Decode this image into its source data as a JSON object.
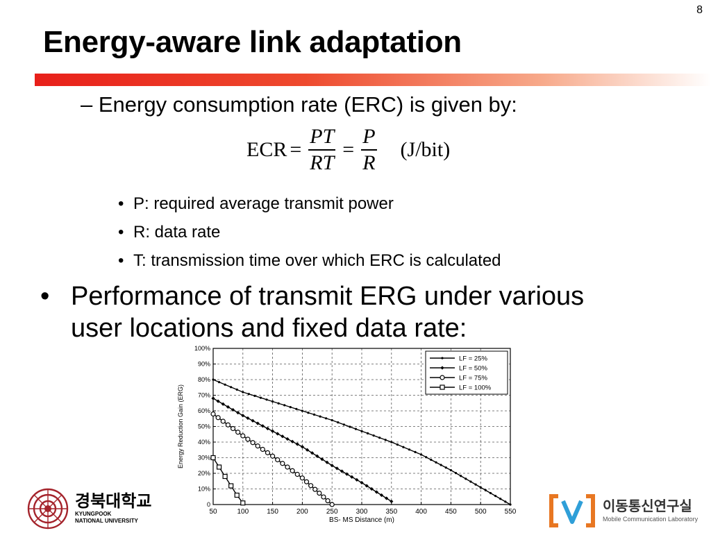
{
  "slide": {
    "page_number": "8",
    "title": "Energy-aware link adaptation",
    "dash_item": "Energy consumption rate (ERC) is given by:",
    "formula": {
      "lhs": "ECR",
      "eq": "=",
      "frac1_num": "PT",
      "frac1_den": "RT",
      "frac2_num": "P",
      "frac2_den": "R",
      "unit": "(J/bit)"
    },
    "sub_bullets": [
      "P: required average transmit power",
      "R: data rate",
      "T: transmission time over which ERC is calculated"
    ],
    "main_bullet": [
      "Performance of transmit ERG under various",
      "user locations and fixed data rate:"
    ],
    "bullet_dash": "–",
    "bullet_dot": "•",
    "footer": {
      "university_kr": "경북대학교",
      "university_en_line1": "KYUNGPOOK",
      "university_en_line2": "NATIONAL UNIVERSITY",
      "lab_kr": "이동통신연구실",
      "lab_en": "Mobile Communication Laboratory",
      "lab_logo_color": "#e87722",
      "lab_logo_v_color": "#2f9fd8",
      "university_logo_color": "#a4232b"
    },
    "accent_bar_colors": [
      "#e8201a",
      "#f7a98a"
    ]
  },
  "chart_data": {
    "type": "line",
    "xlabel": "BS- MS Distance (m)",
    "ylabel": "Energy Reduction Gain (ERG)",
    "xlim": [
      50,
      550
    ],
    "ylim": [
      0,
      100
    ],
    "xticks": [
      "50",
      "100",
      "150",
      "200",
      "250",
      "300",
      "350",
      "400",
      "450",
      "500",
      "550"
    ],
    "yticks": [
      "0",
      "10%",
      "20%",
      "30%",
      "40%",
      "50%",
      "60%",
      "70%",
      "80%",
      "90%",
      "100%"
    ],
    "grid": true,
    "legend_position": "top-right",
    "series": [
      {
        "name": "LF = 25%",
        "marker": "dot",
        "x": [
          50,
          100,
          150,
          200,
          250,
          300,
          350,
          400,
          450,
          500,
          550
        ],
        "y": [
          80,
          72,
          66,
          60,
          54,
          47,
          40,
          32,
          22,
          11,
          0
        ]
      },
      {
        "name": "LF = 50%",
        "marker": "diamond",
        "x": [
          50,
          100,
          150,
          200,
          250,
          300,
          350
        ],
        "y": [
          68,
          57,
          47,
          37,
          25,
          14,
          2
        ]
      },
      {
        "name": "LF = 75%",
        "marker": "circle",
        "x": [
          50,
          100,
          150,
          200,
          250
        ],
        "y": [
          58,
          44,
          31,
          17,
          0
        ]
      },
      {
        "name": "LF = 100%",
        "marker": "square",
        "x": [
          50,
          60,
          70,
          80,
          90,
          100
        ],
        "y": [
          30,
          24,
          18,
          12,
          6,
          1
        ]
      }
    ]
  }
}
